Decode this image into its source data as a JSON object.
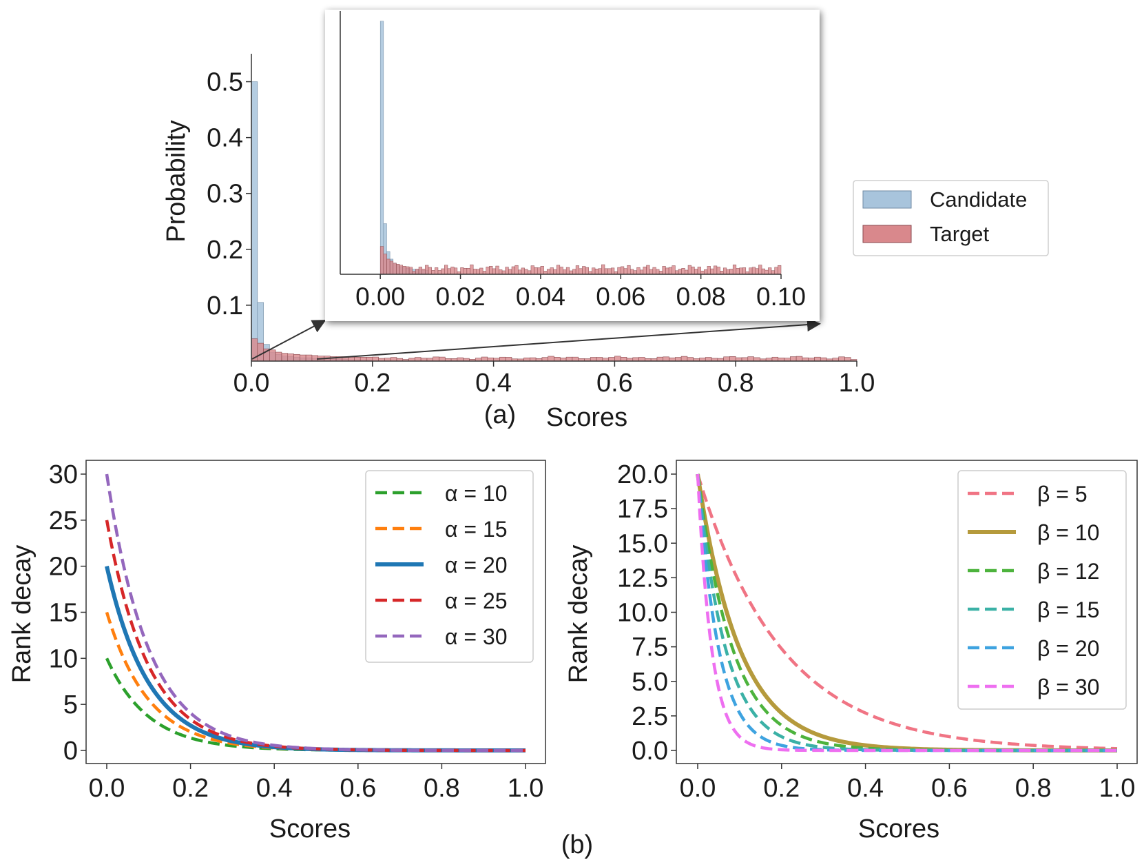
{
  "chart_data": [
    {
      "id": "a",
      "type": "histogram",
      "caption": "(a)",
      "xlabel": "Scores",
      "ylabel": "Probability",
      "xlim": [
        0.0,
        1.0
      ],
      "ylim": [
        0.0,
        0.55
      ],
      "xticks": [
        "0.0",
        "0.2",
        "0.4",
        "0.6",
        "0.8",
        "1.0"
      ],
      "yticks": [
        "0.1",
        "0.2",
        "0.3",
        "0.4",
        "0.5"
      ],
      "bin_width": 0.01,
      "series": [
        {
          "name": "Candidate",
          "color": "#a8c4dc",
          "edge": "#6f8aa3",
          "values": [
            0.5,
            0.105,
            0.03,
            0.016,
            0.012,
            0.009,
            0.008,
            0.007,
            0.006,
            0.006,
            0.005,
            0.004,
            0.004,
            0.003,
            0.003,
            0.003,
            0.002,
            0.002,
            0.002,
            0.002
          ]
        },
        {
          "name": "Target",
          "color": "#d9888c",
          "edge": "#8a4a4f",
          "values": [
            0.04,
            0.032,
            0.022,
            0.02,
            0.016,
            0.014,
            0.013,
            0.012,
            0.011,
            0.011,
            0.01,
            0.009,
            0.009,
            0.008,
            0.008,
            0.008,
            0.007,
            0.007,
            0.007,
            0.007
          ]
        }
      ],
      "legend": {
        "location": "right",
        "entries": [
          "Candidate",
          "Target"
        ]
      },
      "inset": {
        "xlim": [
          -0.01,
          0.1
        ],
        "xticks": [
          "0.00",
          "0.02",
          "0.04",
          "0.06",
          "0.08",
          "0.10"
        ],
        "bin_width": 0.0008,
        "candidate_values": [
          0.5,
          0.1,
          0.045,
          0.03,
          0.022,
          0.018,
          0.015,
          0.013,
          0.012,
          0.011,
          0.01,
          0.009,
          0.009,
          0.008,
          0.008
        ],
        "target_values": [
          0.055,
          0.04,
          0.03,
          0.026,
          0.022,
          0.02,
          0.018,
          0.016,
          0.015,
          0.014
        ]
      }
    },
    {
      "id": "b-left",
      "type": "line",
      "xlabel": "Scores",
      "ylabel": "Rank decay",
      "xlim": [
        0.0,
        1.0
      ],
      "ylim": [
        0,
        30
      ],
      "xticks": [
        "0.0",
        "0.2",
        "0.4",
        "0.6",
        "0.8",
        "1.0"
      ],
      "yticks": [
        "0",
        "5",
        "10",
        "15",
        "20",
        "25",
        "30"
      ],
      "function": "alpha * exp(-10 * x)",
      "series": [
        {
          "name": "α = 10",
          "param_symbol": "α",
          "param_value": 10,
          "color": "#2ca02c",
          "dash": true
        },
        {
          "name": "α = 15",
          "param_symbol": "α",
          "param_value": 15,
          "color": "#ff7f0e",
          "dash": true
        },
        {
          "name": "α = 20",
          "param_symbol": "α",
          "param_value": 20,
          "color": "#1f77b4",
          "dash": false
        },
        {
          "name": "α = 25",
          "param_symbol": "α",
          "param_value": 25,
          "color": "#d62728",
          "dash": true
        },
        {
          "name": "α = 30",
          "param_symbol": "α",
          "param_value": 30,
          "color": "#9467bd",
          "dash": true
        }
      ],
      "legend_location": "top-right"
    },
    {
      "id": "b-right",
      "type": "line",
      "xlabel": "Scores",
      "ylabel": "Rank decay",
      "xlim": [
        0.0,
        1.0
      ],
      "ylim": [
        0.0,
        20.0
      ],
      "xticks": [
        "0.0",
        "0.2",
        "0.4",
        "0.6",
        "0.8",
        "1.0"
      ],
      "yticks": [
        "0.0",
        "2.5",
        "5.0",
        "7.5",
        "10.0",
        "12.5",
        "15.0",
        "17.5",
        "20.0"
      ],
      "function": "20 * exp(-beta * x)",
      "series": [
        {
          "name": "β = 5",
          "param_symbol": "β",
          "param_value": 5,
          "color": "#f07484",
          "dash": true
        },
        {
          "name": "β = 10",
          "param_symbol": "β",
          "param_value": 10,
          "color": "#b59a3c",
          "dash": false
        },
        {
          "name": "β = 12",
          "param_symbol": "β",
          "param_value": 12,
          "color": "#4db33d",
          "dash": true
        },
        {
          "name": "β = 15",
          "param_symbol": "β",
          "param_value": 15,
          "color": "#3bb1a6",
          "dash": true
        },
        {
          "name": "β = 20",
          "param_symbol": "β",
          "param_value": 20,
          "color": "#3ea3e0",
          "dash": true
        },
        {
          "name": "β = 30",
          "param_symbol": "β",
          "param_value": 30,
          "color": "#ee6ff0",
          "dash": true
        }
      ],
      "legend_location": "top-right"
    }
  ],
  "caption_b": "(b)"
}
